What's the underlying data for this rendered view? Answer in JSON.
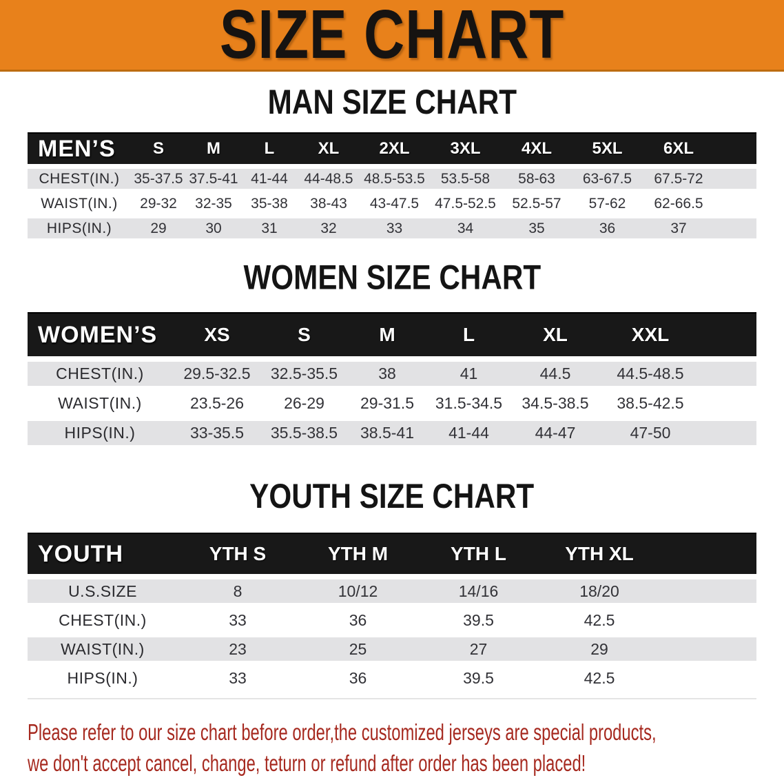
{
  "banner": {
    "title": "SIZE CHART",
    "bg_color": "#e8811b",
    "text_color": "#161311"
  },
  "colors": {
    "table_header_bg": "#181818",
    "table_row_gray": "#e2e2e4",
    "disclaimer_red": "#a6291f"
  },
  "sections": [
    {
      "heading": "MAN SIZE CHART",
      "table": {
        "corner": "MEN’S",
        "columns": [
          "S",
          "M",
          "L",
          "XL",
          "2XL",
          "3XL",
          "4XL",
          "5XL",
          "6XL"
        ],
        "rows": [
          {
            "label": "CHEST(IN.)",
            "values": [
              "35-37.5",
              "37.5-41",
              "41-44",
              "44-48.5",
              "48.5-53.5",
              "53.5-58",
              "58-63",
              "63-67.5",
              "67.5-72"
            ]
          },
          {
            "label": "WAIST(IN.)",
            "values": [
              "29-32",
              "32-35",
              "35-38",
              "38-43",
              "43-47.5",
              "47.5-52.5",
              "52.5-57",
              "57-62",
              "62-66.5"
            ]
          },
          {
            "label": "HIPS(IN.)",
            "values": [
              "29",
              "30",
              "31",
              "32",
              "33",
              "34",
              "35",
              "36",
              "37"
            ]
          }
        ]
      }
    },
    {
      "heading": "WOMEN SIZE CHART",
      "table": {
        "corner": "WOMEN’S",
        "columns": [
          "XS",
          "S",
          "M",
          "L",
          "XL",
          "XXL"
        ],
        "rows": [
          {
            "label": "CHEST(IN.)",
            "values": [
              "29.5-32.5",
              "32.5-35.5",
              "38",
              "41",
              "44.5",
              "44.5-48.5"
            ]
          },
          {
            "label": "WAIST(IN.)",
            "values": [
              "23.5-26",
              "26-29",
              "29-31.5",
              "31.5-34.5",
              "34.5-38.5",
              "38.5-42.5"
            ]
          },
          {
            "label": "HIPS(IN.)",
            "values": [
              "33-35.5",
              "35.5-38.5",
              "38.5-41",
              "41-44",
              "44-47",
              "47-50"
            ]
          }
        ]
      }
    },
    {
      "heading": "YOUTH SIZE CHART",
      "table": {
        "corner": "YOUTH",
        "columns": [
          "YTH S",
          "YTH M",
          "YTH L",
          "YTH XL"
        ],
        "rows": [
          {
            "label": "U.S.SIZE",
            "values": [
              "8",
              "10/12",
              "14/16",
              "18/20"
            ]
          },
          {
            "label": "CHEST(IN.)",
            "values": [
              "33",
              "36",
              "39.5",
              "42.5"
            ]
          },
          {
            "label": "WAIST(IN.)",
            "values": [
              "23",
              "25",
              "27",
              "29"
            ]
          },
          {
            "label": "HIPS(IN.)",
            "values": [
              "33",
              "36",
              "39.5",
              "42.5"
            ]
          }
        ]
      }
    }
  ],
  "disclaimer": {
    "line1": "Please refer to our size chart before order,the customized jerseys are special products,",
    "line2": "we don't accept cancel, change, teturn or refund after order has been placed!"
  }
}
